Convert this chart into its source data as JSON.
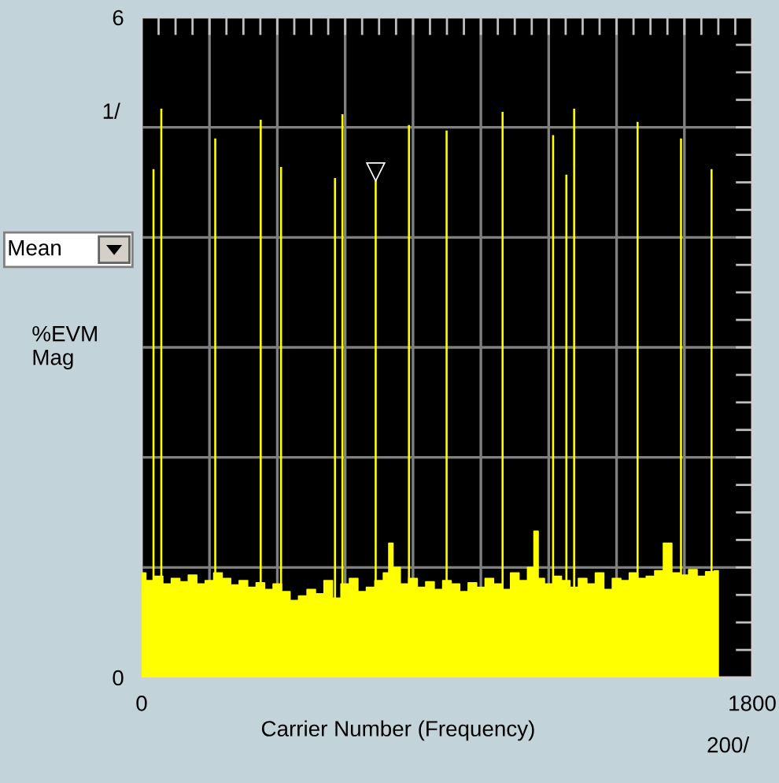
{
  "chart_data": {
    "type": "area",
    "xlabel": "Carrier Number (Frequency)",
    "ylabel": "%EVM\nMag",
    "xlim": [
      0,
      1800
    ],
    "ylim": [
      0,
      6
    ],
    "xticks": [
      0,
      {
        "value": 200,
        "label": null
      },
      {
        "value": 400,
        "label": null
      },
      {
        "value": 600,
        "label": null
      },
      {
        "value": 800,
        "label": null
      },
      {
        "value": 1000,
        "label": null
      },
      {
        "value": 1200,
        "label": null
      },
      {
        "value": 1400,
        "label": null
      },
      {
        "value": 1600,
        "label": null
      },
      1800
    ],
    "yticks": [
      0,
      {
        "value": 1,
        "label": null
      },
      {
        "value": 2,
        "label": null
      },
      {
        "value": 3,
        "label": null
      },
      {
        "value": 4,
        "label": null
      },
      {
        "value": 5,
        "label": null
      },
      6
    ],
    "grid": true,
    "legend": false,
    "annotations": [
      "1/",
      "200/",
      "Mean",
      {
        "text": "▽",
        "x": 690,
        "y": 4.52
      }
    ],
    "series": [
      {
        "color": "#ffff00",
        "x": [
          0,
          25,
          50,
          75,
          100,
          125,
          150,
          175,
          200,
          225,
          250,
          275,
          300,
          325,
          350,
          375,
          400,
          425,
          450,
          475,
          500,
          525,
          550,
          575,
          600,
          625,
          650,
          675,
          700,
          725,
          732,
          750,
          775,
          800,
          825,
          850,
          875,
          900,
          925,
          950,
          975,
          1000,
          1025,
          1050,
          1075,
          1100,
          1125,
          1150,
          1163,
          1175,
          1200,
          1225,
          1250,
          1275,
          1300,
          1325,
          1350,
          1375,
          1400,
          1425,
          1450,
          1475,
          1500,
          1525,
          1551,
          1575,
          1600,
          1625,
          1650,
          1675,
          1700
        ],
        "values": [
          0.95,
          0.88,
          0.92,
          0.85,
          0.9,
          0.87,
          0.93,
          0.85,
          0.88,
          0.95,
          0.9,
          0.84,
          0.88,
          0.82,
          0.86,
          0.8,
          0.85,
          0.78,
          0.7,
          0.74,
          0.8,
          0.76,
          0.88,
          0.72,
          0.85,
          0.9,
          0.78,
          0.82,
          0.88,
          0.95,
          1.22,
          1.0,
          0.85,
          0.9,
          0.82,
          0.87,
          0.8,
          0.88,
          0.85,
          0.78,
          0.86,
          0.82,
          0.9,
          0.85,
          0.8,
          0.95,
          0.88,
          1.0,
          1.33,
          0.9,
          0.85,
          0.92,
          0.88,
          0.82,
          0.9,
          0.85,
          0.95,
          0.8,
          0.9,
          0.88,
          0.95,
          0.9,
          0.92,
          0.97,
          1.22,
          0.95,
          0.93,
          0.98,
          0.92,
          0.96,
          0.97
        ]
      },
      {
        "type": "bar",
        "color": "#ffff00",
        "x": [
          35,
          58,
          217,
          351,
          411,
          570,
          592,
          690,
          788,
          899,
          1064,
          1213,
          1252,
          1275,
          1462,
          1590,
          1680
        ],
        "values": [
          4.62,
          5.17,
          4.9,
          5.07,
          4.64,
          4.54,
          5.12,
          4.52,
          5.02,
          4.97,
          5.14,
          4.93,
          4.57,
          5.17,
          5.05,
          4.9,
          4.62
        ]
      }
    ]
  }
}
